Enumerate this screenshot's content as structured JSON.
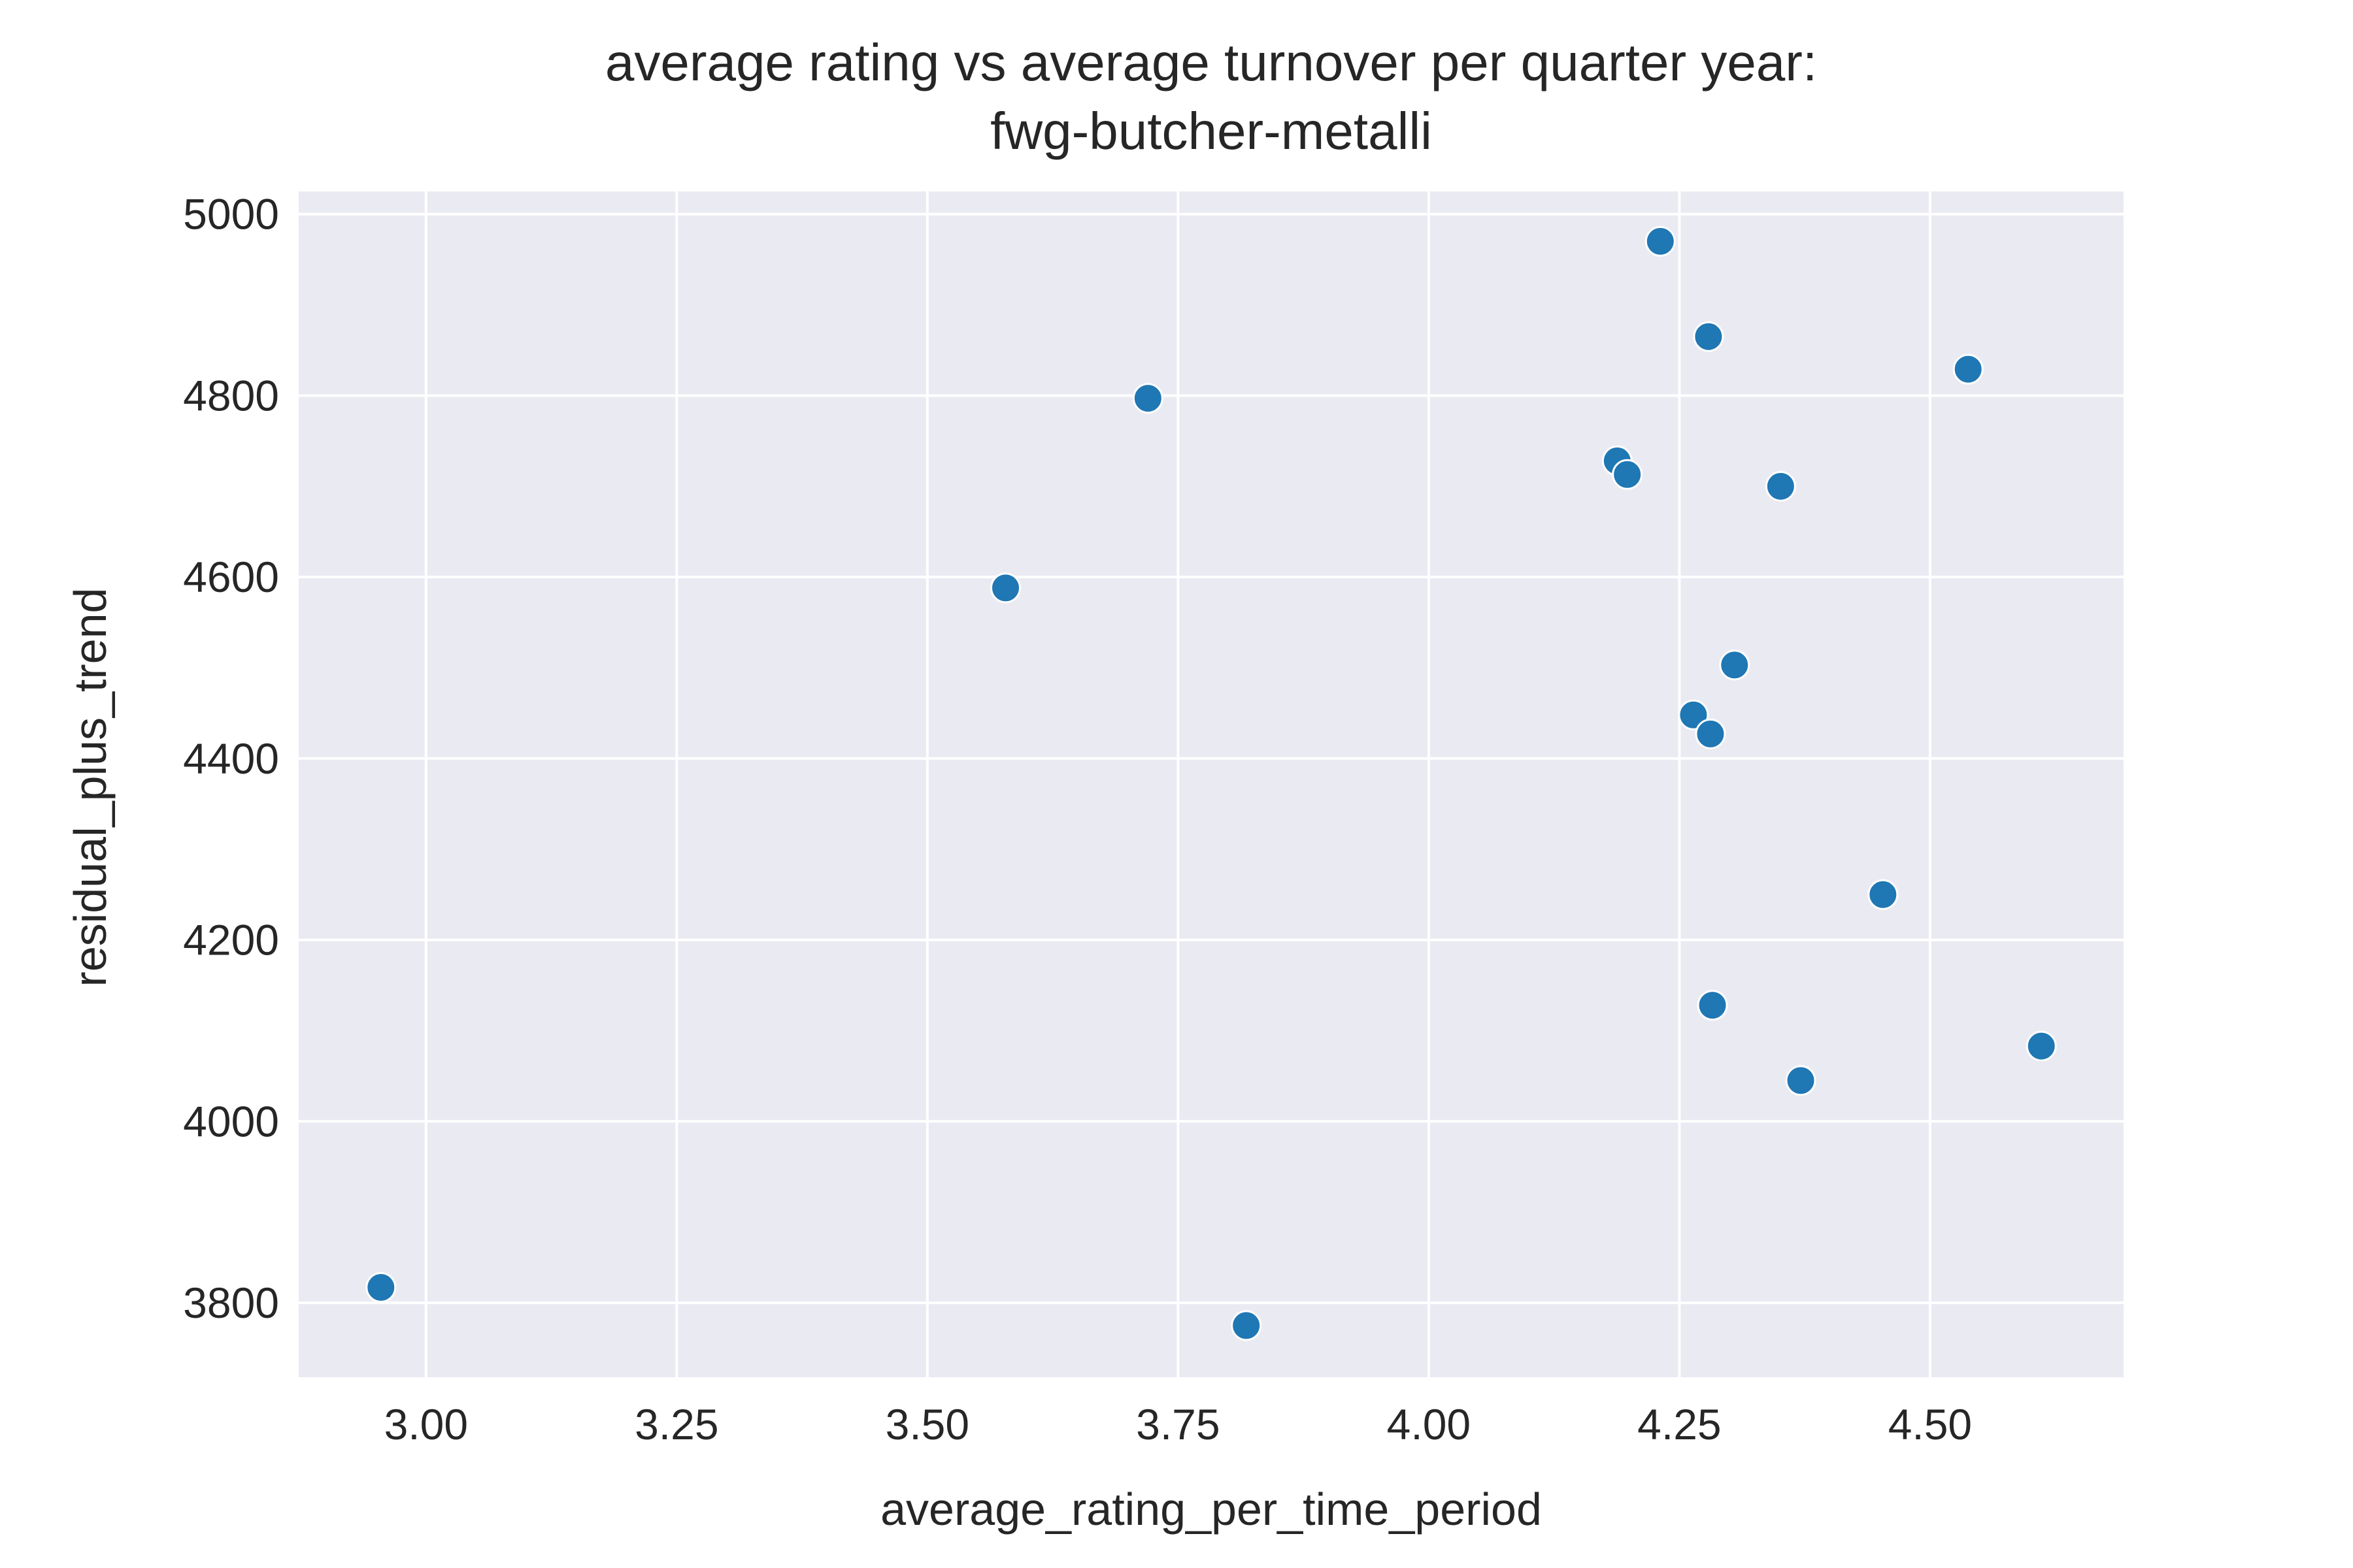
{
  "chart_data": {
    "type": "scatter",
    "title_lines": [
      "average rating vs average turnover per quarter year:",
      "fwg-butcher-metalli"
    ],
    "xlabel": "average_rating_per_time_period",
    "ylabel": "residual_plus_trend",
    "xlim": [
      2.873,
      4.693
    ],
    "ylim": [
      3718,
      5025
    ],
    "x_ticks": [
      3.0,
      3.25,
      3.5,
      3.75,
      4.0,
      4.25,
      4.5
    ],
    "x_tick_labels": [
      "3.00",
      "3.25",
      "3.50",
      "3.75",
      "4.00",
      "4.25",
      "4.50"
    ],
    "y_ticks": [
      3800,
      4000,
      4200,
      4400,
      4600,
      4800,
      5000
    ],
    "y_tick_labels": [
      "3800",
      "4000",
      "4200",
      "4400",
      "4600",
      "4800",
      "5000"
    ],
    "grid": true,
    "background_color": "#eaeaf2",
    "grid_color": "#ffffff",
    "point_color": "#1f77b4",
    "points": [
      {
        "x": 2.955,
        "y": 3817
      },
      {
        "x": 3.578,
        "y": 4588
      },
      {
        "x": 3.72,
        "y": 4797
      },
      {
        "x": 3.818,
        "y": 3775
      },
      {
        "x": 4.188,
        "y": 4728
      },
      {
        "x": 4.198,
        "y": 4713
      },
      {
        "x": 4.231,
        "y": 4970
      },
      {
        "x": 4.264,
        "y": 4448
      },
      {
        "x": 4.279,
        "y": 4865
      },
      {
        "x": 4.281,
        "y": 4427
      },
      {
        "x": 4.283,
        "y": 4128
      },
      {
        "x": 4.305,
        "y": 4503
      },
      {
        "x": 4.351,
        "y": 4700
      },
      {
        "x": 4.371,
        "y": 4045
      },
      {
        "x": 4.453,
        "y": 4250
      },
      {
        "x": 4.538,
        "y": 4829
      },
      {
        "x": 4.611,
        "y": 4083
      }
    ]
  }
}
